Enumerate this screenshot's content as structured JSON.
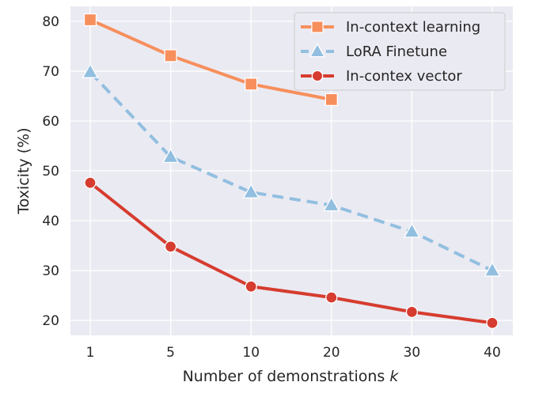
{
  "chart_data": {
    "type": "line",
    "xlabel": "Number of demonstrations",
    "xlabel_var": "k",
    "ylabel": "Toxicity (%)",
    "categories": [
      "1",
      "5",
      "10",
      "20",
      "30",
      "40"
    ],
    "ylim": [
      17,
      83
    ],
    "yticks": [
      20,
      30,
      40,
      50,
      60,
      70,
      80
    ],
    "grid": true,
    "legend_position": "top-right",
    "series": [
      {
        "name": "In-context learning",
        "values": [
          80.3,
          73.1,
          67.4,
          64.3,
          null,
          null
        ],
        "color": "#f78f5d",
        "marker": "square",
        "dash": "solid"
      },
      {
        "name": "LoRA Finetune",
        "values": [
          69.8,
          52.8,
          45.7,
          43.1,
          37.8,
          30.0
        ],
        "color": "#92bfe0",
        "marker": "triangle",
        "dash": "dashed"
      },
      {
        "name": "In-contex vector",
        "values": [
          47.6,
          34.8,
          26.8,
          24.6,
          21.7,
          19.5
        ],
        "color": "#d63c2f",
        "marker": "circle",
        "dash": "solid"
      }
    ]
  }
}
